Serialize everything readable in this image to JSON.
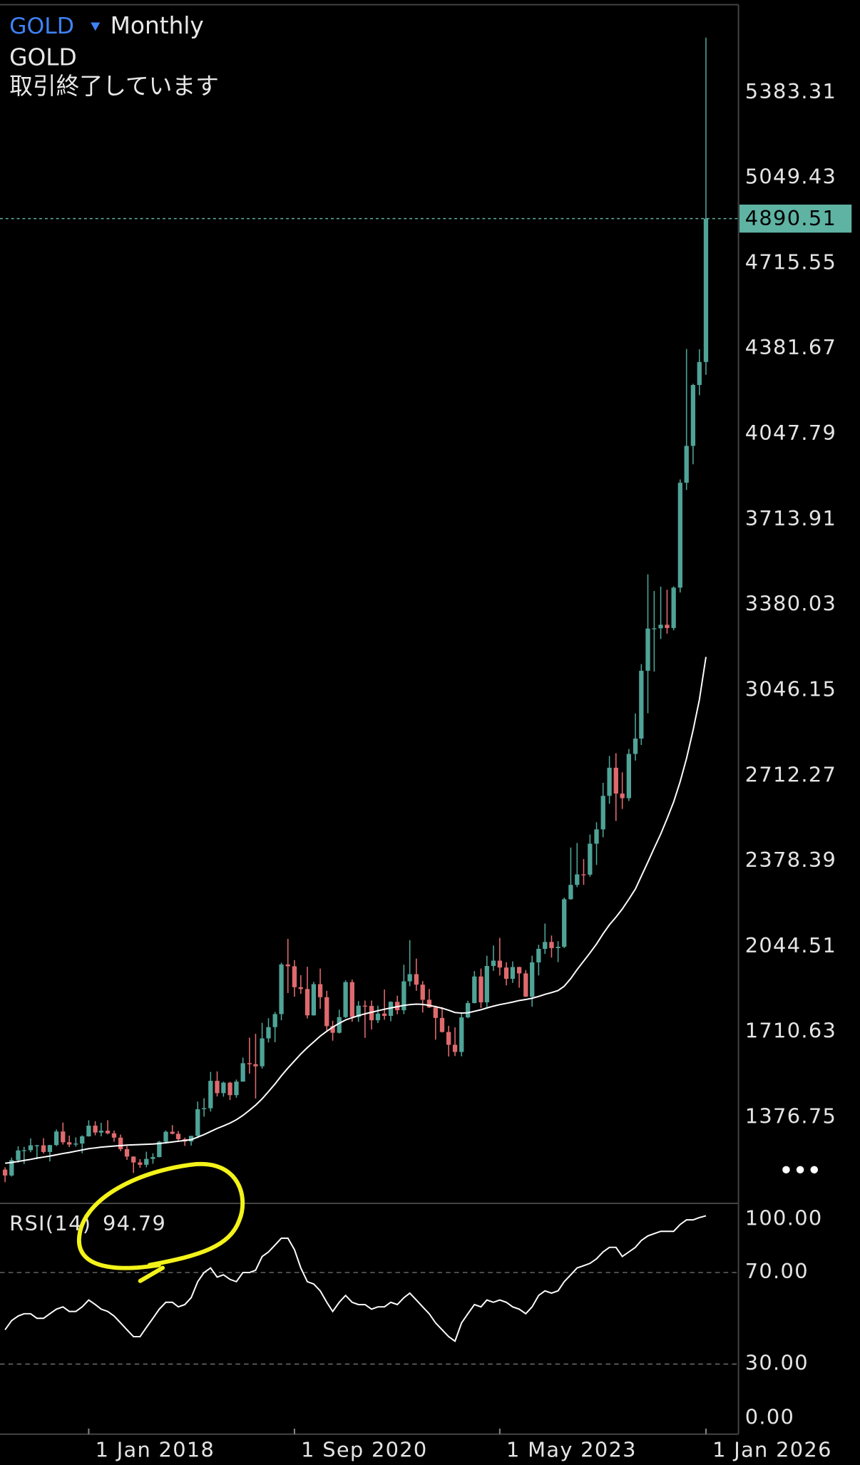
{
  "header": {
    "symbol": "GOLD",
    "timeframe": "Monthly",
    "name": "GOLD",
    "status": "取引終了しています"
  },
  "chart_data": [
    {
      "type": "candlestick",
      "x": [
        "2016-12-01",
        "2017-01-01",
        "2017-02-01",
        "2017-03-01",
        "2017-04-01",
        "2017-05-01",
        "2017-06-01",
        "2017-07-01",
        "2017-08-01",
        "2017-09-01",
        "2017-10-01",
        "2017-11-01",
        "2017-12-01",
        "2018-01-01",
        "2018-02-01",
        "2018-03-01",
        "2018-04-01",
        "2018-05-01",
        "2018-06-01",
        "2018-07-01",
        "2018-08-01",
        "2018-09-01",
        "2018-10-01",
        "2018-11-01",
        "2018-12-01",
        "2019-01-01",
        "2019-02-01",
        "2019-03-01",
        "2019-04-01",
        "2019-05-01",
        "2019-06-01",
        "2019-07-01",
        "2019-08-01",
        "2019-09-01",
        "2019-10-01",
        "2019-11-01",
        "2019-12-01",
        "2020-01-01",
        "2020-02-01",
        "2020-03-01",
        "2020-04-01",
        "2020-05-01",
        "2020-06-01",
        "2020-07-01",
        "2020-08-01",
        "2020-09-01",
        "2020-10-01",
        "2020-11-01",
        "2020-12-01",
        "2021-01-01",
        "2021-02-01",
        "2021-03-01",
        "2021-04-01",
        "2021-05-01",
        "2021-06-01",
        "2021-07-01",
        "2021-08-01",
        "2021-09-01",
        "2021-10-01",
        "2021-11-01",
        "2021-12-01",
        "2022-01-01",
        "2022-02-01",
        "2022-03-01",
        "2022-04-01",
        "2022-05-01",
        "2022-06-01",
        "2022-07-01",
        "2022-08-01",
        "2022-09-01",
        "2022-10-01",
        "2022-11-01",
        "2022-12-01",
        "2023-01-01",
        "2023-02-01",
        "2023-03-01",
        "2023-04-01",
        "2023-05-01",
        "2023-06-01",
        "2023-07-01",
        "2023-08-01",
        "2023-09-01",
        "2023-10-01",
        "2023-11-01",
        "2023-12-01",
        "2024-01-01",
        "2024-02-01",
        "2024-03-01",
        "2024-04-01",
        "2024-05-01",
        "2024-06-01",
        "2024-07-01",
        "2024-08-01",
        "2024-09-01",
        "2024-10-01",
        "2024-11-01",
        "2024-12-01",
        "2025-01-01",
        "2025-02-01",
        "2025-03-01",
        "2025-04-01",
        "2025-05-01",
        "2025-06-01",
        "2025-07-01",
        "2025-08-01",
        "2025-09-01",
        "2025-10-01",
        "2025-11-01",
        "2025-12-01",
        "2026-01-01"
      ],
      "open": [
        1173,
        1150,
        1210,
        1248,
        1249,
        1268,
        1268,
        1242,
        1269,
        1322,
        1280,
        1271,
        1275,
        1303,
        1345,
        1318,
        1325,
        1315,
        1298,
        1253,
        1224,
        1201,
        1192,
        1215,
        1222,
        1282,
        1321,
        1313,
        1292,
        1283,
        1305,
        1409,
        1413,
        1520,
        1472,
        1513,
        1464,
        1517,
        1589,
        1585,
        1577,
        1686,
        1730,
        1781,
        1975,
        1968,
        1886,
        1879,
        1776,
        1898,
        1847,
        1734,
        1708,
        1769,
        1906,
        1770,
        1814,
        1813,
        1757,
        1783,
        1774,
        1829,
        1796,
        1909,
        1937,
        1896,
        1837,
        1807,
        1766,
        1711,
        1661,
        1633,
        1768,
        1824,
        1928,
        1827,
        1969,
        1990,
        1963,
        1919,
        1965,
        1940,
        1849,
        1983,
        2036,
        2063,
        2039,
        2044,
        2230,
        2286,
        2327,
        2326,
        2447,
        2503,
        2634,
        2744,
        2643,
        2625,
        2798,
        2858,
        3123,
        3288,
        3289,
        3303,
        3290,
        3448,
        3858,
        4002,
        4240,
        4330
      ],
      "high": [
        1182,
        1220,
        1264,
        1262,
        1295,
        1270,
        1296,
        1270,
        1330,
        1357,
        1306,
        1299,
        1307,
        1366,
        1362,
        1356,
        1366,
        1326,
        1310,
        1265,
        1225,
        1214,
        1243,
        1237,
        1285,
        1326,
        1347,
        1324,
        1298,
        1305,
        1439,
        1452,
        1555,
        1557,
        1517,
        1516,
        1525,
        1611,
        1689,
        1704,
        1747,
        1765,
        1789,
        1982,
        2075,
        1992,
        1933,
        1966,
        1907,
        1959,
        1872,
        1755,
        1798,
        1913,
        1916,
        1832,
        1834,
        1834,
        1814,
        1877,
        1831,
        1853,
        1974,
        2070,
        1998,
        1910,
        1879,
        1814,
        1808,
        1735,
        1729,
        1787,
        1833,
        1949,
        1959,
        2009,
        2049,
        2079,
        1984,
        1987,
        1966,
        1953,
        2009,
        2052,
        2135,
        2088,
        2066,
        2236,
        2432,
        2450,
        2387,
        2483,
        2531,
        2685,
        2790,
        2801,
        2726,
        2817,
        2956,
        3149,
        3500,
        3435,
        3452,
        3440,
        3453,
        3871,
        4381,
        4245,
        4380,
        5598
      ],
      "low": [
        1124,
        1146,
        1200,
        1195,
        1241,
        1214,
        1236,
        1205,
        1265,
        1271,
        1261,
        1263,
        1237,
        1302,
        1307,
        1303,
        1311,
        1282,
        1245,
        1211,
        1160,
        1180,
        1182,
        1196,
        1221,
        1275,
        1311,
        1281,
        1266,
        1267,
        1296,
        1380,
        1400,
        1459,
        1458,
        1445,
        1454,
        1517,
        1548,
        1451,
        1568,
        1670,
        1671,
        1757,
        1863,
        1849,
        1860,
        1764,
        1775,
        1802,
        1717,
        1677,
        1705,
        1765,
        1751,
        1751,
        1688,
        1721,
        1746,
        1759,
        1753,
        1780,
        1781,
        1890,
        1872,
        1787,
        1805,
        1681,
        1709,
        1615,
        1617,
        1616,
        1765,
        1823,
        1805,
        1809,
        1950,
        1932,
        1893,
        1903,
        1884,
        1849,
        1810,
        1932,
        2016,
        2002,
        1984,
        2039,
        2228,
        2277,
        2286,
        2318,
        2364,
        2472,
        2603,
        2536,
        2583,
        2614,
        2772,
        2833,
        2957,
        3120,
        3247,
        3268,
        3281,
        3429,
        3830,
        3930,
        4200,
        4280
      ],
      "close": [
        1150,
        1210,
        1248,
        1249,
        1268,
        1268,
        1242,
        1269,
        1322,
        1280,
        1271,
        1275,
        1303,
        1345,
        1318,
        1325,
        1315,
        1298,
        1253,
        1224,
        1201,
        1192,
        1215,
        1222,
        1282,
        1321,
        1313,
        1292,
        1283,
        1305,
        1409,
        1413,
        1520,
        1472,
        1513,
        1464,
        1517,
        1589,
        1585,
        1577,
        1686,
        1730,
        1781,
        1975,
        1968,
        1886,
        1879,
        1776,
        1898,
        1847,
        1734,
        1708,
        1769,
        1906,
        1770,
        1814,
        1813,
        1757,
        1783,
        1774,
        1829,
        1796,
        1909,
        1937,
        1896,
        1837,
        1807,
        1766,
        1711,
        1661,
        1633,
        1768,
        1824,
        1928,
        1827,
        1969,
        1990,
        1963,
        1919,
        1965,
        1940,
        1849,
        1983,
        2036,
        2063,
        2039,
        2044,
        2230,
        2286,
        2327,
        2326,
        2447,
        2503,
        2634,
        2744,
        2643,
        2625,
        2798,
        2858,
        3123,
        3288,
        3289,
        3303,
        3290,
        3448,
        3858,
        4002,
        4240,
        4330,
        4890.51
      ],
      "up_color": "#4fa397",
      "down_color": "#df6a6e",
      "ma": {
        "color": "#ffffff",
        "values": [
          1198,
          1201,
          1205,
          1209,
          1213,
          1218,
          1222,
          1226,
          1231,
          1236,
          1240,
          1245,
          1250,
          1255,
          1258,
          1261,
          1263,
          1265,
          1267,
          1269,
          1270,
          1271,
          1272,
          1273,
          1275,
          1278,
          1281,
          1284,
          1287,
          1290,
          1300,
          1310,
          1322,
          1334,
          1344,
          1355,
          1368,
          1385,
          1405,
          1425,
          1450,
          1478,
          1508,
          1540,
          1570,
          1598,
          1625,
          1650,
          1672,
          1695,
          1714,
          1730,
          1745,
          1758,
          1767,
          1775,
          1782,
          1788,
          1794,
          1800,
          1805,
          1810,
          1815,
          1818,
          1820,
          1819,
          1815,
          1810,
          1804,
          1796,
          1787,
          1785,
          1786,
          1792,
          1798,
          1805,
          1812,
          1818,
          1823,
          1828,
          1834,
          1838,
          1843,
          1850,
          1858,
          1865,
          1873,
          1890,
          1920,
          1955,
          1988,
          2020,
          2055,
          2095,
          2130,
          2160,
          2192,
          2230,
          2270,
          2320,
          2375,
          2430,
          2485,
          2545,
          2610,
          2690,
          2780,
          2890,
          3010,
          3177
        ]
      },
      "ylim": [
        1041,
        5745
      ],
      "yticks": [
        1376.75,
        1710.63,
        2044.51,
        2378.39,
        2712.27,
        3046.15,
        3380.03,
        3713.91,
        4047.79,
        4381.67,
        4715.55,
        5049.43,
        5383.31
      ],
      "last_price": 4890.51,
      "last_price_color": "#5fb3a3"
    },
    {
      "type": "line",
      "title": "RSI(14)",
      "last_value": 94.79,
      "color": "#ffffff",
      "values": [
        45,
        49,
        51,
        52,
        52,
        50,
        50,
        52,
        54,
        55,
        53,
        53,
        55,
        58,
        56,
        54,
        53,
        51,
        48,
        45,
        42,
        42,
        46,
        50,
        54,
        57,
        57,
        55,
        56,
        59,
        66,
        70,
        72,
        68,
        69,
        67,
        66,
        70,
        70,
        71,
        77,
        79,
        82,
        85,
        85,
        80,
        72,
        66,
        65,
        62,
        57,
        53,
        57,
        60,
        57,
        56,
        56,
        54,
        55,
        55,
        57,
        56,
        59,
        61,
        58,
        55,
        52,
        48,
        45,
        42,
        40,
        48,
        52,
        56,
        55,
        58,
        57,
        58,
        57,
        55,
        54,
        52,
        55,
        60,
        62,
        61,
        62,
        66,
        69,
        72,
        73,
        74,
        76,
        79,
        81,
        81,
        77,
        79,
        81,
        84,
        86,
        87,
        88,
        88,
        88,
        91,
        93,
        93,
        94,
        94.79
      ],
      "ylim": [
        0,
        100
      ],
      "yticks": [
        {
          "value": 100,
          "label": "100.00"
        },
        {
          "value": 70,
          "label": "70.00"
        },
        {
          "value": 30,
          "label": "30.00"
        },
        {
          "value": 0,
          "label": "0.00"
        }
      ],
      "xlim": [
        "2016-11-07",
        "2026-06-04"
      ],
      "xticks": [
        {
          "value": "2018-01-01",
          "label": "1 Jan 2018"
        },
        {
          "value": "2020-09-01",
          "label": "1 Sep 2020"
        },
        {
          "value": "2023-05-01",
          "label": "1 May 2023"
        },
        {
          "value": "2026-01-01",
          "label": "1 Jan 2026"
        }
      ]
    }
  ]
}
